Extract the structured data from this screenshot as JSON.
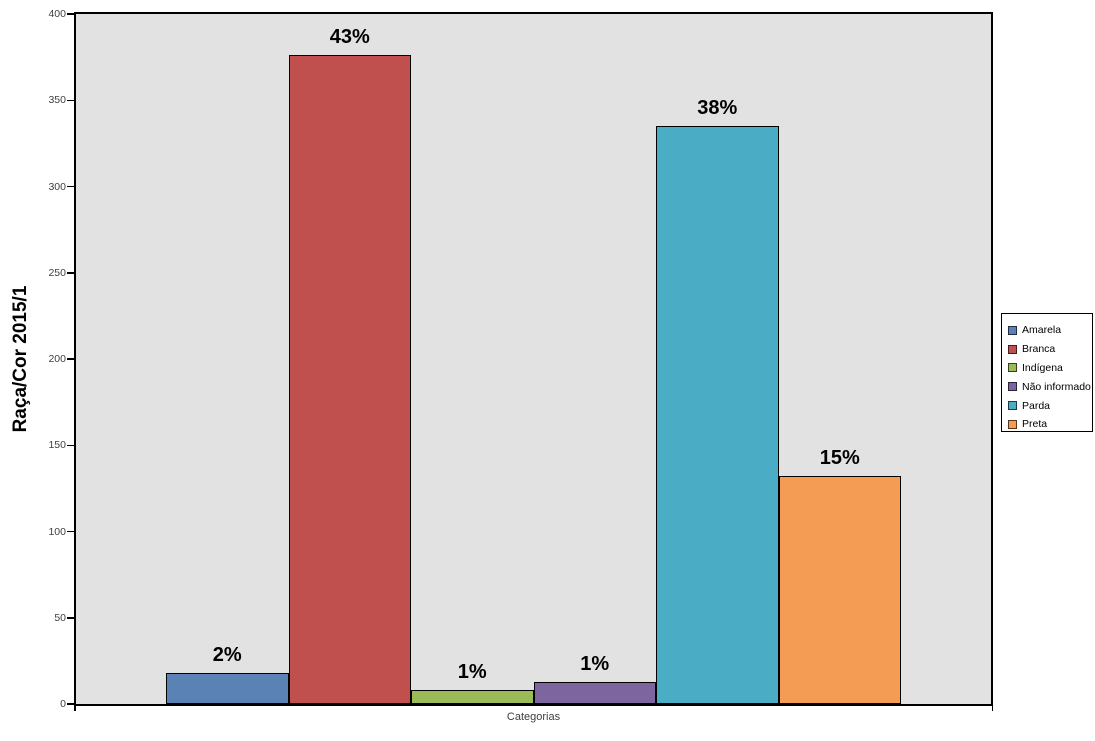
{
  "chart_data": {
    "type": "bar",
    "title": "",
    "ylabel": "Raça/Cor 2015/1",
    "xlabel": "Categorias",
    "categories": [
      "Categorias"
    ],
    "series": [
      {
        "name": "Amarela",
        "value": 18,
        "label": "2%",
        "color": "#5B82B4"
      },
      {
        "name": "Branca",
        "value": 376,
        "label": "43%",
        "color": "#C0504D"
      },
      {
        "name": "Indígena",
        "value": 8,
        "label": "1%",
        "color": "#9BBB59"
      },
      {
        "name": "Não informado",
        "value": 13,
        "label": "1%",
        "color": "#7D66A0"
      },
      {
        "name": "Parda",
        "value": 335,
        "label": "38%",
        "color": "#4BACC6"
      },
      {
        "name": "Preta",
        "value": 132,
        "label": "15%",
        "color": "#F59C54"
      }
    ],
    "ylim": [
      0,
      400
    ],
    "yticks": [
      0,
      50,
      100,
      150,
      200,
      250,
      300,
      350,
      400
    ],
    "grid": false,
    "legend_position": "right",
    "colors": {
      "plot_background": "#E2E2E2",
      "page_background": "#FFFFFF",
      "axis": "#000000",
      "tick_text": "#3F3F3F",
      "data_label_text": "#000000"
    }
  }
}
